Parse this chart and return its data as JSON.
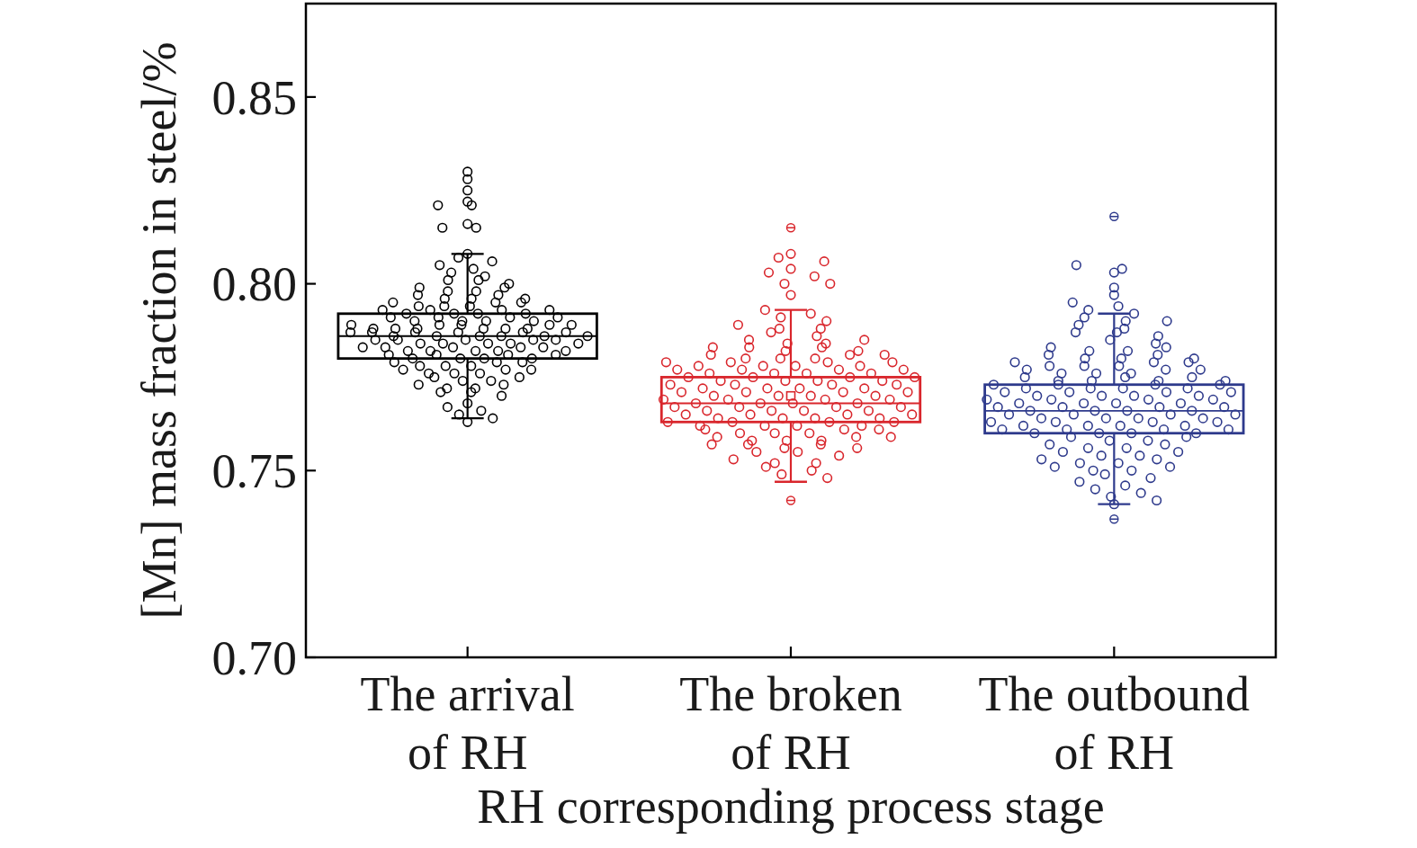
{
  "chart_data": {
    "type": "box",
    "xlabel": "RH corresponding process stage",
    "ylabel": "[Mn] mass fraction in steel/%",
    "categories": [
      "The arrival of RH",
      "The broken of RH",
      "The outbound of RH"
    ],
    "colors": [
      "#000000",
      "#d9262c",
      "#2e3a8c"
    ],
    "ylim": [
      0.7,
      0.875
    ],
    "yticks": [
      {
        "value": 0.7,
        "label": "0.70"
      },
      {
        "value": 0.75,
        "label": "0.75"
      },
      {
        "value": 0.8,
        "label": "0.80"
      },
      {
        "value": 0.85,
        "label": "0.85"
      }
    ],
    "marker": "circle",
    "boxes": [
      {
        "low": 0.764,
        "q1": 0.78,
        "median": 0.786,
        "q3": 0.792,
        "high": 0.808
      },
      {
        "low": 0.747,
        "q1": 0.763,
        "median": 0.768,
        "q3": 0.775,
        "high": 0.793,
        "mean": 0.77,
        "outliers": [
          0.815,
          0.742
        ]
      },
      {
        "low": 0.741,
        "q1": 0.76,
        "median": 0.766,
        "q3": 0.773,
        "high": 0.792,
        "outliers": [
          0.818,
          0.737
        ]
      }
    ],
    "series": [
      {
        "type": "scatter",
        "color": "#000000",
        "x": [
          "The arrival of RH",
          "The arrival of RH",
          "The arrival of RH",
          "The arrival of RH",
          "The arrival of RH",
          "The arrival of RH",
          "The arrival of RH",
          "The arrival of RH",
          "The arrival of RH",
          "The arrival of RH",
          "The arrival of RH",
          "The arrival of RH",
          "The arrival of RH",
          "The arrival of RH",
          "The arrival of RH",
          "The arrival of RH",
          "The arrival of RH",
          "The arrival of RH",
          "The arrival of RH",
          "The arrival of RH",
          "The arrival of RH",
          "The arrival of RH",
          "The arrival of RH",
          "The arrival of RH",
          "The arrival of RH",
          "The arrival of RH",
          "The arrival of RH",
          "The arrival of RH",
          "The arrival of RH",
          "The arrival of RH",
          "The arrival of RH",
          "The arrival of RH",
          "The arrival of RH",
          "The arrival of RH",
          "The arrival of RH",
          "The arrival of RH",
          "The arrival of RH",
          "The arrival of RH",
          "The arrival of RH",
          "The arrival of RH",
          "The arrival of RH",
          "The arrival of RH",
          "The arrival of RH",
          "The arrival of RH",
          "The arrival of RH",
          "The arrival of RH",
          "The arrival of RH",
          "The arrival of RH",
          "The arrival of RH",
          "The arrival of RH",
          "The arrival of RH",
          "The arrival of RH",
          "The arrival of RH",
          "The arrival of RH",
          "The arrival of RH",
          "The arrival of RH",
          "The arrival of RH",
          "The arrival of RH",
          "The arrival of RH",
          "The arrival of RH",
          "The arrival of RH",
          "The arrival of RH",
          "The arrival of RH",
          "The arrival of RH",
          "The arrival of RH",
          "The arrival of RH",
          "The arrival of RH",
          "The arrival of RH",
          "The arrival of RH",
          "The arrival of RH",
          "The arrival of RH",
          "The arrival of RH",
          "The arrival of RH",
          "The arrival of RH",
          "The arrival of RH",
          "The arrival of RH",
          "The arrival of RH",
          "The arrival of RH",
          "The arrival of RH",
          "The arrival of RH",
          "The arrival of RH",
          "The arrival of RH",
          "The arrival of RH",
          "The arrival of RH",
          "The arrival of RH",
          "The arrival of RH",
          "The arrival of RH",
          "The arrival of RH",
          "The arrival of RH",
          "The arrival of RH",
          "The arrival of RH",
          "The arrival of RH",
          "The arrival of RH",
          "The arrival of RH",
          "The arrival of RH",
          "The arrival of RH",
          "The arrival of RH",
          "The arrival of RH",
          "The arrival of RH",
          "The arrival of RH",
          "The arrival of RH",
          "The arrival of RH",
          "The arrival of RH",
          "The arrival of RH",
          "The arrival of RH",
          "The arrival of RH",
          "The arrival of RH",
          "The arrival of RH",
          "The arrival of RH",
          "The arrival of RH",
          "The arrival of RH",
          "The arrival of RH",
          "The arrival of RH",
          "The arrival of RH",
          "The arrival of RH",
          "The arrival of RH",
          "The arrival of RH",
          "The arrival of RH",
          "The arrival of RH",
          "The arrival of RH",
          "The arrival of RH",
          "The arrival of RH",
          "The arrival of RH",
          "The arrival of RH",
          "The arrival of RH",
          "The arrival of RH",
          "The arrival of RH",
          "The arrival of RH",
          "The arrival of RH",
          "The arrival of RH"
        ],
        "values": [
          0.83,
          0.828,
          0.825,
          0.822,
          0.821,
          0.821,
          0.816,
          0.815,
          0.815,
          0.808,
          0.807,
          0.806,
          0.805,
          0.804,
          0.803,
          0.802,
          0.801,
          0.801,
          0.8,
          0.799,
          0.799,
          0.798,
          0.798,
          0.797,
          0.797,
          0.796,
          0.796,
          0.796,
          0.795,
          0.795,
          0.795,
          0.794,
          0.794,
          0.794,
          0.793,
          0.793,
          0.793,
          0.793,
          0.792,
          0.792,
          0.792,
          0.792,
          0.791,
          0.791,
          0.791,
          0.791,
          0.79,
          0.79,
          0.79,
          0.79,
          0.789,
          0.789,
          0.789,
          0.789,
          0.789,
          0.788,
          0.788,
          0.788,
          0.788,
          0.788,
          0.788,
          0.787,
          0.787,
          0.787,
          0.787,
          0.787,
          0.787,
          0.786,
          0.786,
          0.786,
          0.786,
          0.786,
          0.786,
          0.785,
          0.785,
          0.785,
          0.785,
          0.785,
          0.784,
          0.784,
          0.784,
          0.784,
          0.784,
          0.783,
          0.783,
          0.783,
          0.783,
          0.783,
          0.782,
          0.782,
          0.782,
          0.782,
          0.782,
          0.781,
          0.781,
          0.781,
          0.781,
          0.78,
          0.78,
          0.78,
          0.78,
          0.779,
          0.779,
          0.779,
          0.778,
          0.778,
          0.778,
          0.777,
          0.777,
          0.777,
          0.776,
          0.776,
          0.776,
          0.775,
          0.775,
          0.774,
          0.774,
          0.773,
          0.773,
          0.772,
          0.772,
          0.771,
          0.771,
          0.77,
          0.768,
          0.767,
          0.766,
          0.765,
          0.764,
          0.763
        ]
      },
      {
        "type": "scatter",
        "color": "#d9262c",
        "x": [
          "The broken of RH",
          "The broken of RH",
          "The broken of RH",
          "The broken of RH",
          "The broken of RH",
          "The broken of RH",
          "The broken of RH",
          "The broken of RH",
          "The broken of RH",
          "The broken of RH",
          "The broken of RH",
          "The broken of RH",
          "The broken of RH",
          "The broken of RH",
          "The broken of RH",
          "The broken of RH",
          "The broken of RH",
          "The broken of RH",
          "The broken of RH",
          "The broken of RH",
          "The broken of RH",
          "The broken of RH",
          "The broken of RH",
          "The broken of RH",
          "The broken of RH",
          "The broken of RH",
          "The broken of RH",
          "The broken of RH",
          "The broken of RH",
          "The broken of RH",
          "The broken of RH",
          "The broken of RH",
          "The broken of RH",
          "The broken of RH",
          "The broken of RH",
          "The broken of RH",
          "The broken of RH",
          "The broken of RH",
          "The broken of RH",
          "The broken of RH",
          "The broken of RH",
          "The broken of RH",
          "The broken of RH",
          "The broken of RH",
          "The broken of RH",
          "The broken of RH",
          "The broken of RH",
          "The broken of RH",
          "The broken of RH",
          "The broken of RH",
          "The broken of RH",
          "The broken of RH",
          "The broken of RH",
          "The broken of RH",
          "The broken of RH",
          "The broken of RH",
          "The broken of RH",
          "The broken of RH",
          "The broken of RH",
          "The broken of RH",
          "The broken of RH",
          "The broken of RH",
          "The broken of RH",
          "The broken of RH",
          "The broken of RH",
          "The broken of RH",
          "The broken of RH",
          "The broken of RH",
          "The broken of RH",
          "The broken of RH",
          "The broken of RH",
          "The broken of RH",
          "The broken of RH",
          "The broken of RH",
          "The broken of RH",
          "The broken of RH",
          "The broken of RH",
          "The broken of RH",
          "The broken of RH",
          "The broken of RH",
          "The broken of RH",
          "The broken of RH",
          "The broken of RH",
          "The broken of RH",
          "The broken of RH",
          "The broken of RH",
          "The broken of RH",
          "The broken of RH",
          "The broken of RH",
          "The broken of RH",
          "The broken of RH",
          "The broken of RH",
          "The broken of RH",
          "The broken of RH",
          "The broken of RH",
          "The broken of RH",
          "The broken of RH",
          "The broken of RH",
          "The broken of RH",
          "The broken of RH",
          "The broken of RH",
          "The broken of RH",
          "The broken of RH",
          "The broken of RH",
          "The broken of RH",
          "The broken of RH",
          "The broken of RH",
          "The broken of RH",
          "The broken of RH",
          "The broken of RH",
          "The broken of RH",
          "The broken of RH",
          "The broken of RH",
          "The broken of RH",
          "The broken of RH",
          "The broken of RH",
          "The broken of RH",
          "The broken of RH",
          "The broken of RH",
          "The broken of RH",
          "The broken of RH",
          "The broken of RH",
          "The broken of RH",
          "The broken of RH",
          "The broken of RH",
          "The broken of RH",
          "The broken of RH",
          "The broken of RH",
          "The broken of RH",
          "The broken of RH",
          "The broken of RH",
          "The broken of RH"
        ],
        "values": [
          0.808,
          0.807,
          0.806,
          0.804,
          0.803,
          0.802,
          0.8,
          0.8,
          0.797,
          0.793,
          0.792,
          0.791,
          0.79,
          0.789,
          0.788,
          0.788,
          0.787,
          0.786,
          0.785,
          0.785,
          0.784,
          0.784,
          0.783,
          0.783,
          0.783,
          0.782,
          0.782,
          0.781,
          0.781,
          0.781,
          0.78,
          0.78,
          0.78,
          0.779,
          0.779,
          0.779,
          0.779,
          0.778,
          0.778,
          0.778,
          0.778,
          0.777,
          0.777,
          0.777,
          0.777,
          0.776,
          0.776,
          0.776,
          0.776,
          0.775,
          0.775,
          0.775,
          0.775,
          0.774,
          0.774,
          0.774,
          0.774,
          0.773,
          0.773,
          0.773,
          0.773,
          0.772,
          0.772,
          0.772,
          0.772,
          0.771,
          0.771,
          0.771,
          0.771,
          0.77,
          0.77,
          0.77,
          0.77,
          0.769,
          0.769,
          0.769,
          0.769,
          0.768,
          0.768,
          0.768,
          0.768,
          0.767,
          0.767,
          0.767,
          0.767,
          0.766,
          0.766,
          0.766,
          0.766,
          0.765,
          0.765,
          0.765,
          0.765,
          0.764,
          0.764,
          0.764,
          0.764,
          0.763,
          0.763,
          0.763,
          0.763,
          0.762,
          0.762,
          0.762,
          0.762,
          0.761,
          0.761,
          0.761,
          0.76,
          0.76,
          0.76,
          0.759,
          0.759,
          0.759,
          0.758,
          0.758,
          0.758,
          0.757,
          0.757,
          0.757,
          0.756,
          0.756,
          0.755,
          0.755,
          0.754,
          0.753,
          0.752,
          0.752,
          0.751,
          0.75,
          0.749,
          0.748
        ]
      },
      {
        "type": "scatter",
        "color": "#2e3a8c",
        "x": [
          "The outbound of RH",
          "The outbound of RH",
          "The outbound of RH",
          "The outbound of RH",
          "The outbound of RH",
          "The outbound of RH",
          "The outbound of RH",
          "The outbound of RH",
          "The outbound of RH",
          "The outbound of RH",
          "The outbound of RH",
          "The outbound of RH",
          "The outbound of RH",
          "The outbound of RH",
          "The outbound of RH",
          "The outbound of RH",
          "The outbound of RH",
          "The outbound of RH",
          "The outbound of RH",
          "The outbound of RH",
          "The outbound of RH",
          "The outbound of RH",
          "The outbound of RH",
          "The outbound of RH",
          "The outbound of RH",
          "The outbound of RH",
          "The outbound of RH",
          "The outbound of RH",
          "The outbound of RH",
          "The outbound of RH",
          "The outbound of RH",
          "The outbound of RH",
          "The outbound of RH",
          "The outbound of RH",
          "The outbound of RH",
          "The outbound of RH",
          "The outbound of RH",
          "The outbound of RH",
          "The outbound of RH",
          "The outbound of RH",
          "The outbound of RH",
          "The outbound of RH",
          "The outbound of RH",
          "The outbound of RH",
          "The outbound of RH",
          "The outbound of RH",
          "The outbound of RH",
          "The outbound of RH",
          "The outbound of RH",
          "The outbound of RH",
          "The outbound of RH",
          "The outbound of RH",
          "The outbound of RH",
          "The outbound of RH",
          "The outbound of RH",
          "The outbound of RH",
          "The outbound of RH",
          "The outbound of RH",
          "The outbound of RH",
          "The outbound of RH",
          "The outbound of RH",
          "The outbound of RH",
          "The outbound of RH",
          "The outbound of RH",
          "The outbound of RH",
          "The outbound of RH",
          "The outbound of RH",
          "The outbound of RH",
          "The outbound of RH",
          "The outbound of RH",
          "The outbound of RH",
          "The outbound of RH",
          "The outbound of RH",
          "The outbound of RH",
          "The outbound of RH",
          "The outbound of RH",
          "The outbound of RH",
          "The outbound of RH",
          "The outbound of RH",
          "The outbound of RH",
          "The outbound of RH",
          "The outbound of RH",
          "The outbound of RH",
          "The outbound of RH",
          "The outbound of RH",
          "The outbound of RH",
          "The outbound of RH",
          "The outbound of RH",
          "The outbound of RH",
          "The outbound of RH",
          "The outbound of RH",
          "The outbound of RH",
          "The outbound of RH",
          "The outbound of RH",
          "The outbound of RH",
          "The outbound of RH",
          "The outbound of RH",
          "The outbound of RH",
          "The outbound of RH",
          "The outbound of RH",
          "The outbound of RH",
          "The outbound of RH",
          "The outbound of RH",
          "The outbound of RH",
          "The outbound of RH",
          "The outbound of RH",
          "The outbound of RH",
          "The outbound of RH",
          "The outbound of RH",
          "The outbound of RH",
          "The outbound of RH",
          "The outbound of RH",
          "The outbound of RH",
          "The outbound of RH",
          "The outbound of RH",
          "The outbound of RH",
          "The outbound of RH",
          "The outbound of RH",
          "The outbound of RH",
          "The outbound of RH",
          "The outbound of RH",
          "The outbound of RH",
          "The outbound of RH",
          "The outbound of RH",
          "The outbound of RH",
          "The outbound of RH",
          "The outbound of RH",
          "The outbound of RH",
          "The outbound of RH",
          "The outbound of RH",
          "The outbound of RH",
          "The outbound of RH"
        ],
        "values": [
          0.805,
          0.804,
          0.803,
          0.799,
          0.797,
          0.795,
          0.794,
          0.793,
          0.792,
          0.791,
          0.79,
          0.79,
          0.789,
          0.788,
          0.787,
          0.787,
          0.786,
          0.785,
          0.784,
          0.783,
          0.783,
          0.782,
          0.782,
          0.781,
          0.781,
          0.78,
          0.78,
          0.78,
          0.779,
          0.779,
          0.779,
          0.778,
          0.778,
          0.778,
          0.777,
          0.777,
          0.777,
          0.776,
          0.776,
          0.776,
          0.775,
          0.775,
          0.775,
          0.774,
          0.774,
          0.774,
          0.774,
          0.773,
          0.773,
          0.773,
          0.773,
          0.772,
          0.772,
          0.772,
          0.772,
          0.771,
          0.771,
          0.771,
          0.771,
          0.77,
          0.77,
          0.77,
          0.77,
          0.769,
          0.769,
          0.769,
          0.769,
          0.768,
          0.768,
          0.768,
          0.768,
          0.767,
          0.767,
          0.767,
          0.767,
          0.766,
          0.766,
          0.766,
          0.766,
          0.765,
          0.765,
          0.765,
          0.765,
          0.764,
          0.764,
          0.764,
          0.764,
          0.763,
          0.763,
          0.763,
          0.763,
          0.762,
          0.762,
          0.762,
          0.762,
          0.761,
          0.761,
          0.761,
          0.761,
          0.76,
          0.76,
          0.76,
          0.76,
          0.759,
          0.759,
          0.758,
          0.758,
          0.757,
          0.757,
          0.756,
          0.756,
          0.755,
          0.755,
          0.754,
          0.754,
          0.753,
          0.753,
          0.752,
          0.752,
          0.751,
          0.751,
          0.75,
          0.75,
          0.749,
          0.748,
          0.747,
          0.746,
          0.745,
          0.744,
          0.743,
          0.742,
          0.741
        ]
      }
    ]
  }
}
